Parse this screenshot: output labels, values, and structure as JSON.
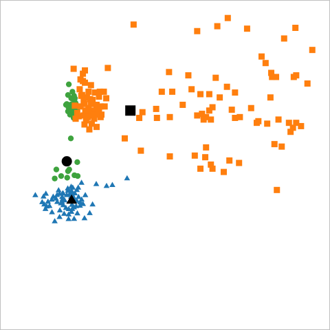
{
  "chart_data": {
    "type": "scatter",
    "title": "",
    "xlabel": "",
    "ylabel": "",
    "xlim": [
      -1.05,
      3.05
    ],
    "ylim": [
      -0.91,
      3.12
    ],
    "axes_visible": false,
    "grid": false,
    "legend": "none",
    "series": [
      {
        "marker": "triangle",
        "color": "#1f77b4",
        "points": [
          [
            -0.275,
            0.68
          ],
          [
            -0.221,
            0.735
          ],
          [
            -0.207,
            0.786
          ],
          [
            -0.208,
            0.815
          ],
          [
            -0.196,
            0.79
          ],
          [
            -0.166,
            0.836
          ],
          [
            -0.146,
            0.825
          ],
          [
            -0.078,
            0.826
          ],
          [
            -0.037,
            0.885
          ],
          [
            -0.311,
            0.75
          ],
          [
            -0.341,
            0.736
          ],
          [
            -0.355,
            0.692
          ],
          [
            -0.389,
            0.715
          ],
          [
            -0.406,
            0.679
          ],
          [
            -0.339,
            0.651
          ],
          [
            -0.28,
            0.653
          ],
          [
            -0.264,
            0.611
          ],
          [
            -0.196,
            0.563
          ],
          [
            -0.197,
            0.498
          ],
          [
            -0.253,
            0.506
          ],
          [
            -0.163,
            0.53
          ],
          [
            -0.153,
            0.564
          ],
          [
            -0.131,
            0.584
          ],
          [
            -0.157,
            0.616
          ],
          [
            -0.104,
            0.599
          ],
          [
            -0.056,
            0.604
          ],
          [
            -0.053,
            0.646
          ],
          [
            -0.094,
            0.662
          ],
          [
            -0.127,
            0.676
          ],
          [
            -0.136,
            0.709
          ],
          [
            -0.168,
            0.712
          ],
          [
            -0.074,
            0.711
          ],
          [
            -0.12,
            0.755
          ],
          [
            -0.159,
            0.75
          ],
          [
            -0.095,
            0.796
          ],
          [
            -0.159,
            0.783
          ],
          [
            -0.187,
            0.741
          ],
          [
            -0.278,
            0.711
          ],
          [
            -0.272,
            0.756
          ],
          [
            -0.322,
            0.793
          ],
          [
            -0.435,
            0.601
          ],
          [
            -0.47,
            0.596
          ],
          [
            -0.5,
            0.62
          ],
          [
            -0.454,
            0.654
          ],
          [
            -0.526,
            0.648
          ],
          [
            -0.509,
            0.717
          ],
          [
            -0.48,
            0.751
          ],
          [
            -0.611,
            0.733
          ],
          [
            -0.485,
            0.564
          ],
          [
            -0.306,
            0.548
          ],
          [
            -0.31,
            0.467
          ],
          [
            -0.37,
            0.414
          ],
          [
            -0.404,
            0.525
          ],
          [
            -0.293,
            0.634
          ],
          [
            -0.036,
            0.68
          ],
          [
            -0.019,
            0.625
          ],
          [
            0.01,
            0.734
          ],
          [
            0.1,
            0.62
          ],
          [
            0.065,
            0.514
          ],
          [
            0.0,
            0.451
          ],
          [
            0.146,
            0.869
          ],
          [
            0.274,
            0.846
          ],
          [
            0.346,
            0.857
          ],
          [
            0.529,
            0.939
          ],
          [
            -0.129,
            0.444
          ],
          [
            -0.198,
            0.442
          ],
          [
            -0.231,
            0.577
          ],
          [
            -0.089,
            0.511
          ],
          [
            -0.264,
            0.752
          ],
          [
            -0.247,
            0.671
          ]
        ]
      },
      {
        "marker": "circle",
        "color": "#3ea33e",
        "points": [
          [
            -0.22,
            1.85
          ],
          [
            -0.205,
            1.76
          ],
          [
            -0.18,
            1.72
          ],
          [
            -0.205,
            1.96
          ],
          [
            -0.19,
            1.81
          ],
          [
            -0.175,
            1.84
          ],
          [
            -0.15,
            1.77
          ],
          [
            -0.135,
            1.73
          ],
          [
            -0.11,
            1.76
          ],
          [
            -0.155,
            1.85
          ],
          [
            -0.125,
            1.9
          ],
          [
            -0.165,
            1.92
          ],
          [
            -0.1,
            1.69
          ],
          [
            -0.09,
            1.73
          ],
          [
            -0.085,
            1.8
          ],
          [
            -0.11,
            1.86
          ],
          [
            -0.13,
            1.95
          ],
          [
            -0.195,
            2.09
          ],
          [
            -0.15,
            2.0
          ],
          [
            -0.23,
            1.84
          ],
          [
            -0.12,
            1.92
          ],
          [
            -0.16,
            1.78
          ],
          [
            -0.135,
            1.68
          ],
          [
            -0.17,
            1.43
          ],
          [
            -0.19,
            1.05
          ],
          [
            -0.09,
            1.14
          ],
          [
            -0.085,
            0.97
          ],
          [
            -0.205,
            1.03
          ],
          [
            -0.125,
            0.98
          ],
          [
            -0.35,
            1.05
          ],
          [
            -0.37,
            0.94
          ],
          [
            -0.215,
            0.95
          ],
          [
            -0.29,
            0.97
          ],
          [
            -0.15,
            1.84
          ],
          [
            -0.2,
            1.81
          ]
        ]
      },
      {
        "marker": "square",
        "color": "#ff7f0e",
        "points": [
          [
            0.61,
            2.82
          ],
          [
            1.4,
            2.74
          ],
          [
            1.65,
            2.8
          ],
          [
            1.78,
            2.9
          ],
          [
            2.02,
            2.77
          ],
          [
            2.48,
            2.65
          ],
          [
            2.62,
            2.78
          ],
          [
            2.83,
            2.51
          ],
          [
            2.2,
            2.43
          ],
          [
            2.25,
            2.35
          ],
          [
            2.32,
            2.23
          ],
          [
            2.33,
            2.18
          ],
          [
            2.38,
            2.18
          ],
          [
            2.6,
            2.18
          ],
          [
            2.63,
            2.2
          ],
          [
            2.77,
            2.1
          ],
          [
            1.05,
            2.24
          ],
          [
            1.29,
            2.2
          ],
          [
            1.63,
            2.17
          ],
          [
            1.77,
            2.06
          ],
          [
            1.33,
            2.03
          ],
          [
            1.55,
            1.97
          ],
          [
            1.87,
            1.99
          ],
          [
            1.68,
            1.93
          ],
          [
            2.31,
            1.93
          ],
          [
            1.59,
            1.81
          ],
          [
            1.83,
            1.78
          ],
          [
            2.07,
            1.8
          ],
          [
            1.55,
            1.77
          ],
          [
            1.51,
            1.69
          ],
          [
            1.46,
            1.73
          ],
          [
            1.48,
            1.66
          ],
          [
            1.4,
            1.71
          ],
          [
            1.57,
            1.66
          ],
          [
            1.93,
            1.69
          ],
          [
            2.14,
            1.62
          ],
          [
            2.16,
            1.64
          ],
          [
            2.27,
            1.61
          ],
          [
            2.41,
            1.66
          ],
          [
            2.54,
            1.62
          ],
          [
            2.59,
            1.56
          ],
          [
            2.63,
            1.62
          ],
          [
            1.44,
            1.97
          ],
          [
            0.96,
            2.0
          ],
          [
            1.09,
            2.0
          ],
          [
            1.22,
            1.84
          ],
          [
            0.72,
            1.75
          ],
          [
            0.89,
            1.79
          ],
          [
            1.06,
            1.69
          ],
          [
            0.68,
            1.68
          ],
          [
            0.9,
            1.68
          ],
          [
            0.5,
            1.43
          ],
          [
            0.7,
            1.28
          ],
          [
            1.51,
            1.32
          ],
          [
            1.37,
            1.22
          ],
          [
            1.5,
            1.2
          ],
          [
            1.57,
            1.11
          ],
          [
            1.8,
            1.16
          ],
          [
            1.92,
            1.13
          ],
          [
            1.06,
            1.21
          ],
          [
            1.44,
            1.06
          ],
          [
            1.59,
            1.06
          ],
          [
            1.73,
            1.02
          ],
          [
            2.45,
            1.33
          ],
          [
            2.56,
            1.51
          ],
          [
            2.69,
            1.58
          ],
          [
            1.87,
            1.68
          ],
          [
            2.36,
            1.36
          ],
          [
            2.39,
            0.8
          ],
          [
            -0.02,
            2.22
          ],
          [
            0.005,
            2.11
          ],
          [
            0.08,
            2.08
          ],
          [
            0.05,
            2.0
          ],
          [
            0.13,
            1.99
          ],
          [
            0.1,
            1.9
          ],
          [
            -0.06,
            2.03
          ],
          [
            0.15,
            1.84
          ],
          [
            0.05,
            1.8
          ],
          [
            -0.03,
            1.96
          ],
          [
            0.18,
            1.94
          ],
          [
            0.27,
            1.92
          ],
          [
            0.25,
            1.82
          ],
          [
            0.11,
            1.77
          ],
          [
            0.05,
            1.74
          ],
          [
            0.12,
            1.67
          ],
          [
            0.2,
            1.69
          ],
          [
            0.09,
            1.61
          ],
          [
            0.15,
            1.57
          ],
          [
            0.06,
            1.54
          ],
          [
            0.02,
            1.65
          ],
          [
            -0.07,
            1.7
          ],
          [
            -0.05,
            1.82
          ],
          [
            -0.12,
            1.83
          ],
          [
            -0.09,
            1.74
          ],
          [
            -0.11,
            1.67
          ],
          [
            0.0,
            1.85
          ],
          [
            0.03,
            1.93
          ],
          [
            -0.01,
            1.71
          ],
          [
            0.2,
            1.82
          ],
          [
            0.08,
            1.85
          ],
          [
            0.07,
            1.71
          ],
          [
            0.0,
            1.6
          ],
          [
            -0.02,
            2.13
          ],
          [
            0.01,
            1.77
          ],
          [
            -0.135,
            2.28
          ],
          [
            0.005,
            2.26
          ],
          [
            0.29,
            2.29
          ],
          [
            -0.05,
            2.15
          ],
          [
            0.24,
            2.0
          ],
          [
            0.19,
            2.0
          ],
          [
            0.21,
            1.72
          ],
          [
            0.11,
            1.72
          ],
          [
            0.04,
            1.69
          ],
          [
            -0.04,
            1.95
          ],
          [
            0.02,
            1.69
          ],
          [
            0.15,
            1.72
          ],
          [
            0.18,
            1.78
          ],
          [
            0.07,
            1.91
          ],
          [
            -0.01,
            1.89
          ]
        ]
      },
      {
        "marker": "square",
        "color": "#000000",
        "points": [
          [
            0.57,
            1.77
          ]
        ]
      },
      {
        "marker": "circle",
        "color": "#000000",
        "points": [
          [
            -0.22,
            1.15
          ]
        ]
      },
      {
        "marker": "triangle",
        "color": "#000000",
        "points": [
          [
            -0.16,
            0.67
          ]
        ]
      }
    ]
  }
}
